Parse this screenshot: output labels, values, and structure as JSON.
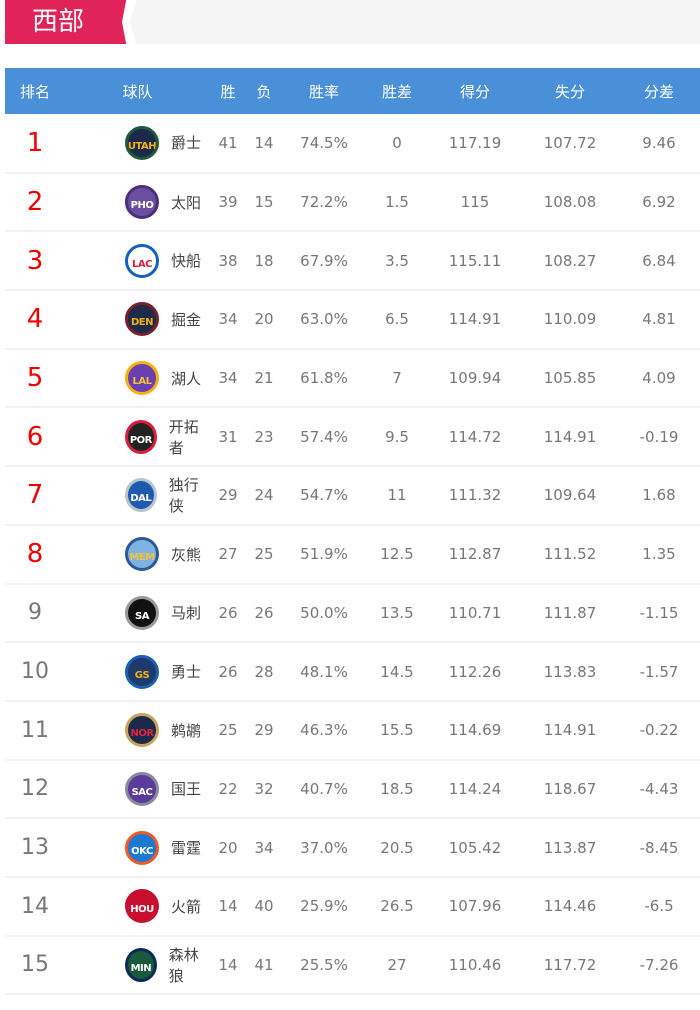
{
  "section": {
    "title": "西部",
    "accent": "#e0245a",
    "header_bg": "#4a90d9"
  },
  "columns": [
    "排名",
    "球队",
    "胜",
    "负",
    "胜率",
    "胜差",
    "得分",
    "失分",
    "分差"
  ],
  "rows": [
    {
      "rank": "1",
      "abbr": "UTAH",
      "name": "爵士",
      "w": "41",
      "l": "14",
      "pct": "74.5%",
      "gb": "0",
      "pf": "117.19",
      "pa": "107.72",
      "diff": "9.46",
      "ring": "#1f5b3a",
      "fill": "#1b2a4a",
      "text": "#f5b112"
    },
    {
      "rank": "2",
      "abbr": "PHO",
      "name": "太阳",
      "w": "39",
      "l": "15",
      "pct": "72.2%",
      "gb": "1.5",
      "pf": "115",
      "pa": "108.08",
      "diff": "6.92",
      "ring": "#4b2f7a",
      "fill": "#6a4fa0",
      "text": "#fff"
    },
    {
      "rank": "3",
      "abbr": "LAC",
      "name": "快船",
      "w": "38",
      "l": "18",
      "pct": "67.9%",
      "gb": "3.5",
      "pf": "115.11",
      "pa": "108.27",
      "diff": "6.84",
      "ring": "#1560bd",
      "fill": "#fff",
      "text": "#d81e3c"
    },
    {
      "rank": "4",
      "abbr": "DEN",
      "name": "掘金",
      "w": "34",
      "l": "20",
      "pct": "63.0%",
      "gb": "6.5",
      "pf": "114.91",
      "pa": "110.09",
      "diff": "4.81",
      "ring": "#7a1f2b",
      "fill": "#1d2a4a",
      "text": "#f5b112"
    },
    {
      "rank": "5",
      "abbr": "LAL",
      "name": "湖人",
      "w": "34",
      "l": "21",
      "pct": "61.8%",
      "gb": "7",
      "pf": "109.94",
      "pa": "105.85",
      "diff": "4.09",
      "ring": "#f5b112",
      "fill": "#6a3fb0",
      "text": "#f5c33a"
    },
    {
      "rank": "6",
      "abbr": "POR",
      "name": "开拓者",
      "w": "31",
      "l": "23",
      "pct": "57.4%",
      "gb": "9.5",
      "pf": "114.72",
      "pa": "114.91",
      "diff": "-0.19",
      "ring": "#d81e3c",
      "fill": "#222",
      "text": "#fff"
    },
    {
      "rank": "7",
      "abbr": "DAL",
      "name": "独行侠",
      "w": "29",
      "l": "24",
      "pct": "54.7%",
      "gb": "11",
      "pf": "111.32",
      "pa": "109.64",
      "diff": "1.68",
      "ring": "#b8c4ce",
      "fill": "#1e5bb0",
      "text": "#fff"
    },
    {
      "rank": "8",
      "abbr": "MEM",
      "name": "灰熊",
      "w": "27",
      "l": "25",
      "pct": "51.9%",
      "gb": "12.5",
      "pf": "112.87",
      "pa": "111.52",
      "diff": "1.35",
      "ring": "#2a5a9a",
      "fill": "#7fb4e0",
      "text": "#f5c33a"
    },
    {
      "rank": "9",
      "abbr": "SA",
      "name": "马刺",
      "w": "26",
      "l": "26",
      "pct": "50.0%",
      "gb": "13.5",
      "pf": "110.71",
      "pa": "111.87",
      "diff": "-1.15",
      "ring": "#9a9a9a",
      "fill": "#111",
      "text": "#fff"
    },
    {
      "rank": "10",
      "abbr": "GS",
      "name": "勇士",
      "w": "26",
      "l": "28",
      "pct": "48.1%",
      "gb": "14.5",
      "pf": "112.26",
      "pa": "113.83",
      "diff": "-1.57",
      "ring": "#1d5fb0",
      "fill": "#1d3a6a",
      "text": "#f5b112"
    },
    {
      "rank": "11",
      "abbr": "NOR",
      "name": "鹈鹕",
      "w": "25",
      "l": "29",
      "pct": "46.3%",
      "gb": "15.5",
      "pf": "114.69",
      "pa": "114.91",
      "diff": "-0.22",
      "ring": "#c9a460",
      "fill": "#1b2a4a",
      "text": "#e0243c"
    },
    {
      "rank": "12",
      "abbr": "SAC",
      "name": "国王",
      "w": "22",
      "l": "32",
      "pct": "40.7%",
      "gb": "18.5",
      "pf": "114.24",
      "pa": "118.67",
      "diff": "-4.43",
      "ring": "#8a8a9a",
      "fill": "#5a3a9a",
      "text": "#fff"
    },
    {
      "rank": "13",
      "abbr": "OKC",
      "name": "雷霆",
      "w": "20",
      "l": "34",
      "pct": "37.0%",
      "gb": "20.5",
      "pf": "105.42",
      "pa": "113.87",
      "diff": "-8.45",
      "ring": "#f05a28",
      "fill": "#1d7ad0",
      "text": "#fff"
    },
    {
      "rank": "14",
      "abbr": "HOU",
      "name": "火箭",
      "w": "14",
      "l": "40",
      "pct": "25.9%",
      "gb": "26.5",
      "pf": "107.96",
      "pa": "114.46",
      "diff": "-6.5",
      "ring": "#c8102e",
      "fill": "#c8102e",
      "text": "#fff"
    },
    {
      "rank": "15",
      "abbr": "MIN",
      "name": "森林狼",
      "w": "14",
      "l": "41",
      "pct": "25.5%",
      "gb": "27",
      "pf": "110.46",
      "pa": "117.72",
      "diff": "-7.26",
      "ring": "#0c2a5a",
      "fill": "#1a5a3a",
      "text": "#fff"
    }
  ]
}
